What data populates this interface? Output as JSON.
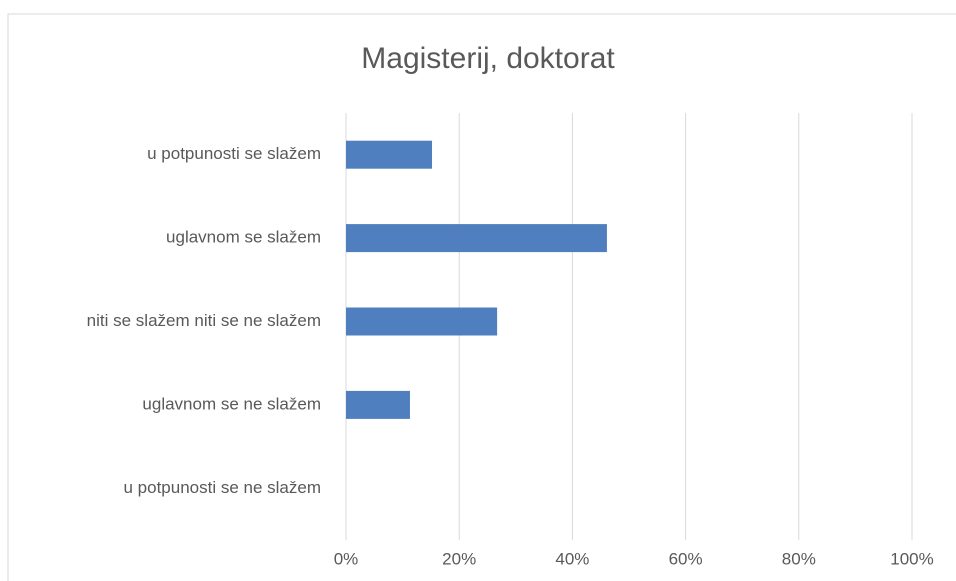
{
  "chart_data": {
    "type": "bar",
    "orientation": "horizontal",
    "title": "Magisterij, doktorat",
    "categories": [
      "u potpunosti se slažem",
      "uglavnom se slažem",
      "niti se slažem niti se ne slažem",
      "uglavnom se ne slažem",
      "u potpunosti se ne slažem"
    ],
    "values": [
      15.2,
      46.1,
      26.7,
      11.3,
      0
    ],
    "color": "#4f7fbe",
    "xlim": [
      0,
      100
    ],
    "xticks": [
      {
        "value": 0,
        "label": "0%"
      },
      {
        "value": 20,
        "label": "20%"
      },
      {
        "value": 40,
        "label": "40%"
      },
      {
        "value": 60,
        "label": "60%"
      },
      {
        "value": 80,
        "label": "80%"
      },
      {
        "value": 100,
        "label": "100%"
      }
    ],
    "grid": true
  }
}
